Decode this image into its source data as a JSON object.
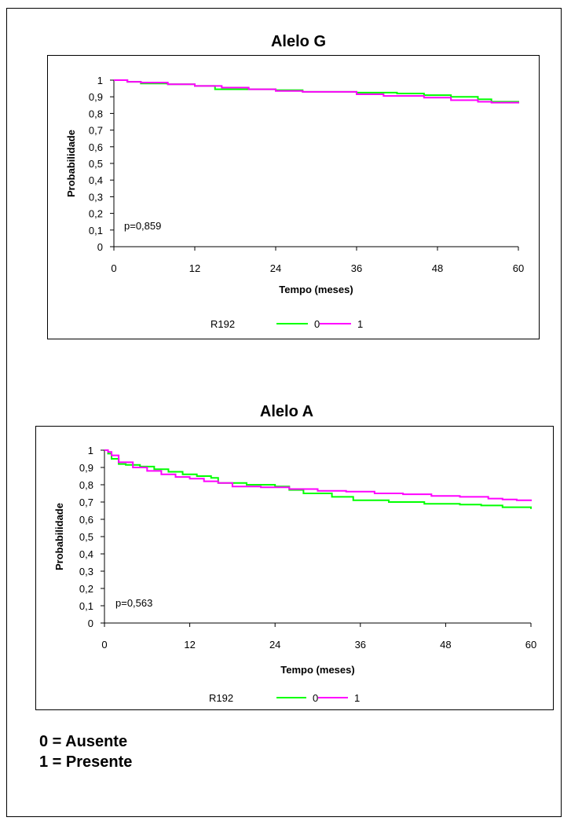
{
  "chart_data": [
    {
      "type": "line",
      "title": "Alelo G",
      "xlabel": "Tempo (meses)",
      "ylabel": "Probabilidade",
      "xlim": [
        0,
        60
      ],
      "ylim": [
        0,
        1
      ],
      "x_ticks": [
        "0",
        "12",
        "24",
        "36",
        "48",
        "60"
      ],
      "y_ticks": [
        "0",
        "0,1",
        "0,2",
        "0,3",
        "0,4",
        "0,5",
        "0,6",
        "0,7",
        "0,8",
        "0,9",
        "1"
      ],
      "annotation": "p=0,859",
      "legend": {
        "title": "R192",
        "placement": "bottom",
        "entries": [
          "0",
          "1"
        ]
      },
      "series": [
        {
          "name": "0",
          "color": "#00ff00",
          "x": [
            0,
            2,
            4,
            8,
            12,
            15,
            20,
            24,
            28,
            36,
            42,
            46,
            50,
            54,
            56,
            60
          ],
          "y": [
            1.0,
            0.99,
            0.98,
            0.975,
            0.965,
            0.945,
            0.945,
            0.94,
            0.93,
            0.925,
            0.92,
            0.91,
            0.9,
            0.885,
            0.87,
            0.865
          ]
        },
        {
          "name": "1",
          "color": "#ff00ff",
          "x": [
            0,
            2,
            4,
            8,
            12,
            16,
            20,
            24,
            28,
            36,
            40,
            46,
            50,
            54,
            56,
            60
          ],
          "y": [
            1.0,
            0.99,
            0.985,
            0.975,
            0.965,
            0.955,
            0.945,
            0.935,
            0.93,
            0.915,
            0.905,
            0.895,
            0.88,
            0.87,
            0.865,
            0.86
          ]
        }
      ]
    },
    {
      "type": "line",
      "title": "Alelo A",
      "xlabel": "Tempo (meses)",
      "ylabel": "Probabilidade",
      "xlim": [
        0,
        60
      ],
      "ylim": [
        0,
        1
      ],
      "x_ticks": [
        "0",
        "12",
        "24",
        "36",
        "48",
        "60"
      ],
      "y_ticks": [
        "0",
        "0,1",
        "0,2",
        "0,3",
        "0,4",
        "0,5",
        "0,6",
        "0,7",
        "0,8",
        "0,9",
        "1"
      ],
      "annotation": "p=0,563",
      "legend": {
        "title": "R192",
        "placement": "bottom",
        "entries": [
          "0",
          "1"
        ]
      },
      "series": [
        {
          "name": "0",
          "color": "#00ff00",
          "x": [
            0,
            0.5,
            1,
            2,
            3,
            5,
            7,
            9,
            11,
            13,
            15,
            16,
            20,
            24,
            26,
            28,
            32,
            35,
            40,
            45,
            50,
            53,
            56,
            60
          ],
          "y": [
            1.0,
            0.98,
            0.95,
            0.92,
            0.915,
            0.905,
            0.89,
            0.875,
            0.86,
            0.85,
            0.84,
            0.81,
            0.8,
            0.79,
            0.77,
            0.75,
            0.73,
            0.71,
            0.7,
            0.69,
            0.685,
            0.68,
            0.67,
            0.66
          ]
        },
        {
          "name": "1",
          "color": "#ff00ff",
          "x": [
            0,
            0.5,
            1,
            2,
            4,
            6,
            8,
            10,
            12,
            14,
            16,
            18,
            22,
            26,
            30,
            34,
            38,
            42,
            46,
            50,
            54,
            56,
            58,
            60
          ],
          "y": [
            1.0,
            0.99,
            0.97,
            0.93,
            0.9,
            0.88,
            0.86,
            0.845,
            0.835,
            0.82,
            0.81,
            0.79,
            0.785,
            0.775,
            0.765,
            0.76,
            0.75,
            0.745,
            0.735,
            0.73,
            0.72,
            0.715,
            0.71,
            0.705
          ]
        }
      ]
    }
  ],
  "notes": [
    "0 = Ausente",
    "1 = Presente"
  ]
}
